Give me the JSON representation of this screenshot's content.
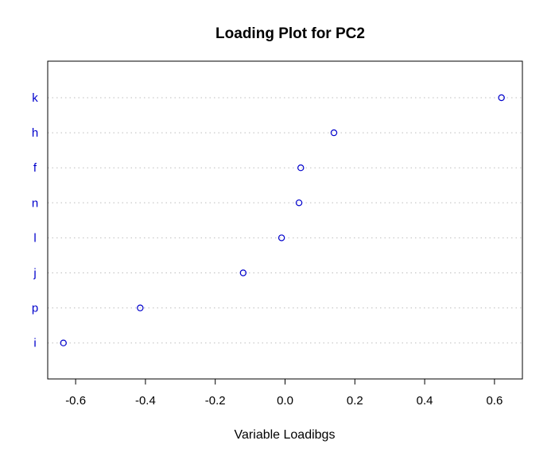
{
  "chart_data": {
    "type": "scatter",
    "title": "Loading Plot for PC2",
    "xlabel": "Variable Loadibgs",
    "ylabel": "",
    "xlim": [
      -0.68,
      0.68
    ],
    "xticks": [
      -0.6,
      -0.4,
      -0.2,
      0.0,
      0.2,
      0.4,
      0.6
    ],
    "xtick_labels": [
      "-0.6",
      "-0.4",
      "-0.2",
      "0.0",
      "0.2",
      "0.4",
      "0.6"
    ],
    "categories": [
      "k",
      "h",
      "f",
      "n",
      "l",
      "j",
      "p",
      "i"
    ],
    "values": [
      0.62,
      0.14,
      0.045,
      0.04,
      -0.01,
      -0.12,
      -0.415,
      -0.635
    ],
    "point_color": "#0000cc",
    "label_color": "#0000cc",
    "grid_color": "#bdbdbd",
    "grid": "dotted horizontal"
  }
}
